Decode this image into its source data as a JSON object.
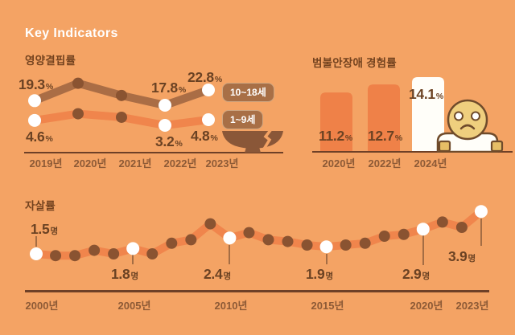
{
  "page": {
    "title": "Key Indicators"
  },
  "colors": {
    "background": "#F4A364",
    "axis_brown": "#6E4027",
    "value_text": "#6B4223",
    "year_text": "#8D5A36",
    "section_title": "#74431F",
    "title_white": "#FFFFFF",
    "line_dark": "#AA6D45",
    "line_orange": "#F0854C",
    "dot_dark": "#8A5331",
    "dot_white": "#FFFFFF",
    "bar_orange": "#EF8148",
    "bar_white": "#FFFEF9",
    "badge_bg": "#A86F46",
    "leader_line": "#8A5B39",
    "bowl_brown": "#8A5738",
    "face_yellow": "#EFCF7E",
    "hand_yellow": "#E6BE66",
    "icon_outline": "#6F4B2B"
  },
  "chart_data": [
    {
      "id": "nutrition-deficiency",
      "type": "line",
      "title": "영양결핍률",
      "unit": "%",
      "categories": [
        "2019년",
        "2020년",
        "2021년",
        "2022년",
        "2023년"
      ],
      "legend_position": "right",
      "icon": "cracked-rice-bowl",
      "series": [
        {
          "name": "10~18세",
          "values": [
            19.3,
            25.0,
            21.0,
            17.8,
            22.8
          ],
          "highlight_indices": [
            0,
            3,
            4
          ],
          "labels": [
            {
              "at": "2019년",
              "num": "19.3",
              "unit": "%"
            },
            {
              "at": "2022년",
              "num": "17.8",
              "unit": "%"
            },
            {
              "at": "2023년",
              "num": "22.8",
              "unit": "%"
            }
          ]
        },
        {
          "name": "1~9세",
          "values": [
            4.6,
            6.5,
            5.5,
            3.2,
            4.8
          ],
          "highlight_indices": [
            0,
            3,
            4
          ],
          "labels": [
            {
              "at": "2019년",
              "num": "4.6",
              "unit": "%"
            },
            {
              "at": "2022년",
              "num": "3.2",
              "unit": "%"
            },
            {
              "at": "2023년",
              "num": "4.8",
              "unit": "%"
            }
          ]
        }
      ]
    },
    {
      "id": "anxiety-experience",
      "type": "bar",
      "title": "범불안장애 경험률",
      "unit": "%",
      "categories": [
        "2020년",
        "2022년",
        "2024년"
      ],
      "values": [
        11.2,
        12.7,
        14.1
      ],
      "highlight_index": 2,
      "icon": "sad-person",
      "labels": [
        {
          "at": "2020년",
          "num": "11.2",
          "unit": "%"
        },
        {
          "at": "2022년",
          "num": "12.7",
          "unit": "%"
        },
        {
          "at": "2024년",
          "num": "14.1",
          "unit": "%"
        }
      ]
    },
    {
      "id": "suicide-rate",
      "type": "line",
      "title": "자살률",
      "unit": "명",
      "years": [
        2000,
        2001,
        2002,
        2003,
        2004,
        2005,
        2006,
        2007,
        2008,
        2009,
        2010,
        2011,
        2012,
        2013,
        2014,
        2015,
        2016,
        2017,
        2018,
        2019,
        2020,
        2021,
        2022,
        2023
      ],
      "values": [
        1.5,
        1.4,
        1.4,
        1.7,
        1.5,
        1.8,
        1.5,
        2.1,
        2.3,
        3.2,
        2.4,
        2.7,
        2.3,
        2.2,
        2.0,
        1.9,
        2.0,
        2.1,
        2.5,
        2.6,
        2.9,
        3.3,
        3.0,
        3.9
      ],
      "highlight_years": [
        2000,
        2005,
        2010,
        2015,
        2020,
        2023
      ],
      "tick_labels": [
        "2000년",
        "2005년",
        "2010년",
        "2015년",
        "2020년",
        "2023년"
      ],
      "labels": [
        {
          "at": "2000년",
          "num": "1.5",
          "unit": "명"
        },
        {
          "at": "2005년",
          "num": "1.8",
          "unit": "명"
        },
        {
          "at": "2010년",
          "num": "2.4",
          "unit": "명"
        },
        {
          "at": "2015년",
          "num": "1.9",
          "unit": "명"
        },
        {
          "at": "2020년",
          "num": "2.9",
          "unit": "명"
        },
        {
          "at": "2023년",
          "num": "3.9",
          "unit": "명"
        }
      ]
    }
  ]
}
